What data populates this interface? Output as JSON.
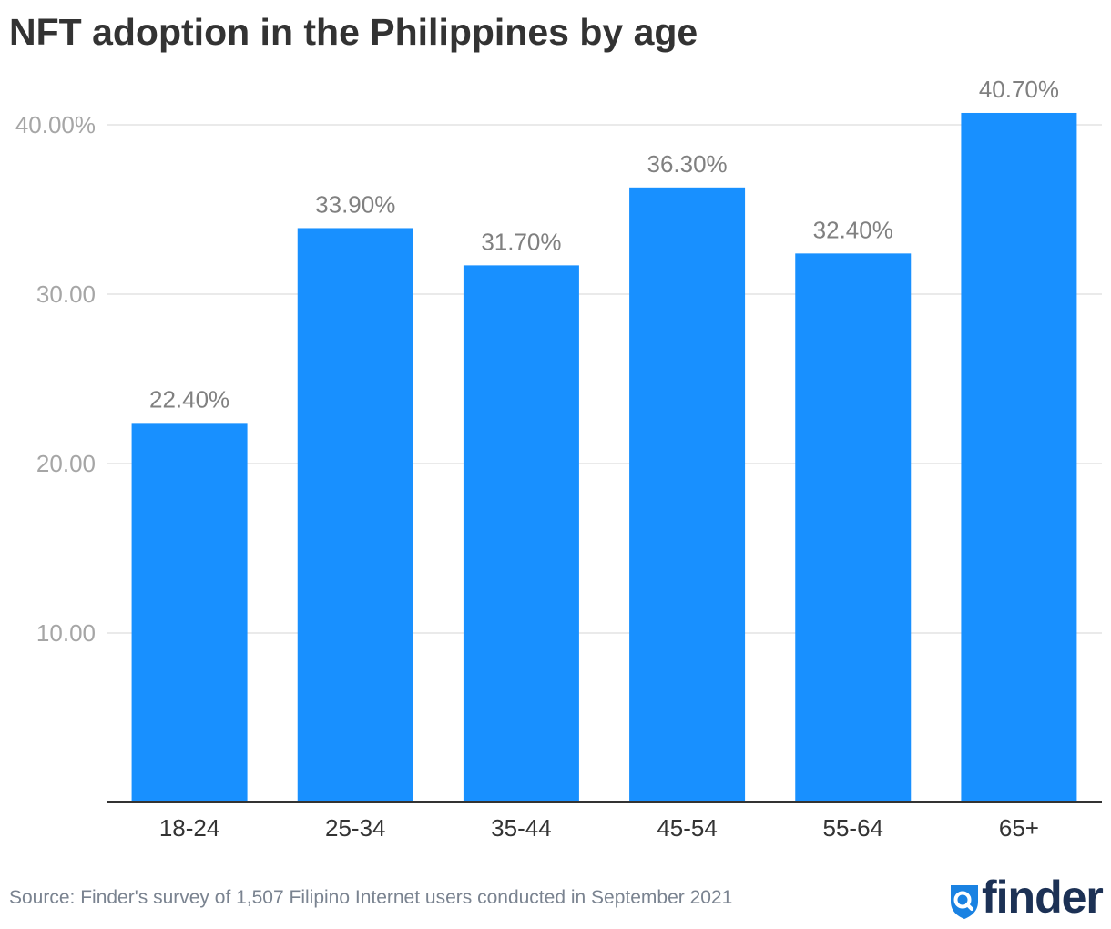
{
  "title": "NFT adoption in the Philippines by age",
  "source": "Source: Finder's survey of 1,507 Filipino Internet users conducted in September 2021",
  "brand": {
    "name": "finder",
    "icon": "magnifier-shield-icon",
    "icon_color": "#1a82e2",
    "text_color": "#1c3155"
  },
  "colors": {
    "bar": "#1890ff",
    "grid": "#e3e3e3",
    "axis": "#333333",
    "tick_label": "#a6a6a6",
    "value_label": "#808080",
    "category_label": "#333333"
  },
  "chart_data": {
    "type": "bar",
    "categories": [
      "18-24",
      "25-34",
      "35-44",
      "45-54",
      "55-64",
      "65+"
    ],
    "values": [
      22.4,
      33.9,
      31.7,
      36.3,
      32.4,
      40.7
    ],
    "value_labels": [
      "22.40%",
      "33.90%",
      "31.70%",
      "36.30%",
      "32.40%",
      "40.70%"
    ],
    "yticks": [
      10,
      20,
      30,
      40
    ],
    "ytick_labels": [
      "10.00",
      "20.00",
      "30.00",
      "40.00%"
    ],
    "ylim": [
      0,
      40
    ],
    "grid": true,
    "legend": "none",
    "title": "NFT adoption in the Philippines by age",
    "xlabel": "",
    "ylabel": ""
  }
}
